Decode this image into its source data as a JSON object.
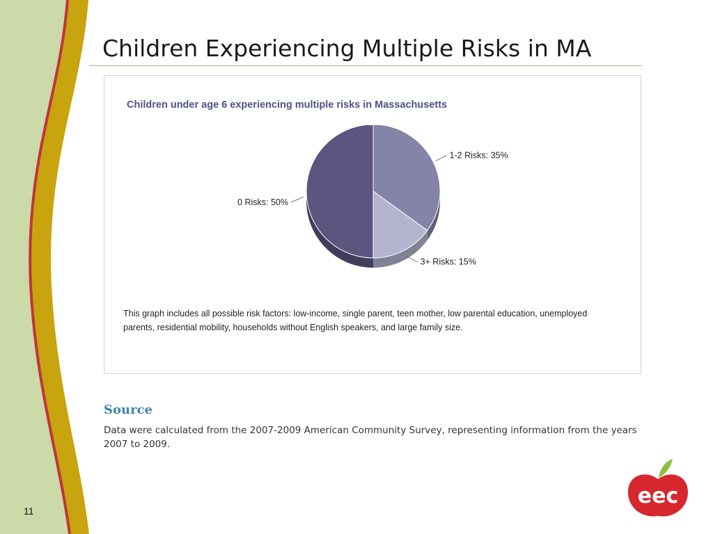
{
  "slide": {
    "title": "Children Experiencing Multiple Risks in MA",
    "page_number": "11"
  },
  "chart_data": {
    "type": "pie",
    "title": "Children under age 6 experiencing multiple risks in Massachusetts",
    "slices": [
      {
        "label": "1-2 Risks: 35%",
        "category": "1-2 Risks",
        "value": 35,
        "color": "#8484a8"
      },
      {
        "label": "3+ Risks: 15%",
        "category": "3+ Risks",
        "value": 15,
        "color": "#b4b4d0"
      },
      {
        "label": "0 Risks: 50%",
        "category": "0 Risks",
        "value": 50,
        "color": "#5b5580"
      }
    ],
    "note": "This graph includes all possible risk factors: low-income, single parent, teen mother, low parental education, unemployed parents, residential mobility, households without English speakers, and large family size."
  },
  "source": {
    "heading": "Source",
    "text": "Data were calculated from the 2007-2009 American Community Survey, representing information from the years 2007 to 2009."
  },
  "logo": {
    "text": "eec",
    "colors": {
      "apple": "#d7262e",
      "leaf": "#8cbf3f"
    }
  },
  "theme": {
    "sidebar_green": "#ccd9a8",
    "sidebar_gold": "#c8a40f",
    "sidebar_red": "#c0353a"
  }
}
